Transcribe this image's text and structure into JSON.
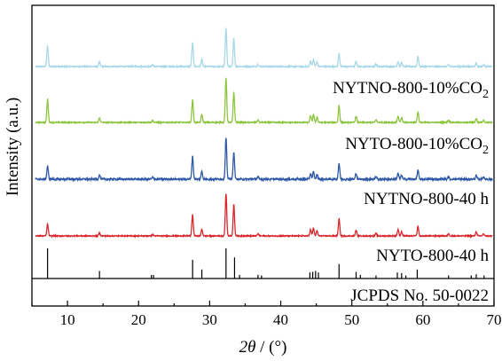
{
  "chart_data": {
    "type": "line",
    "xlabel": "2θ / (°)",
    "xlabel_var": "2θ",
    "xlabel_unit": " / (°)",
    "ylabel": "Intensity (a.u.)",
    "xlim": [
      5,
      70
    ],
    "x_ticks": [
      10,
      20,
      30,
      40,
      50,
      60,
      70
    ],
    "y_ticks_shown": false,
    "grid": false,
    "stacking": "vertical offset, top to bottom",
    "series": [
      {
        "name": "NYTNO-800-10%CO2",
        "label_main": "NYTNO-800-10%CO",
        "label_sub": "2",
        "color": "#a9d8e6",
        "noise": 0.05,
        "peaks": [
          [
            7.2,
            0.52
          ],
          [
            14.5,
            0.12
          ],
          [
            22,
            0.05
          ],
          [
            27.6,
            0.62
          ],
          [
            28.9,
            0.18
          ],
          [
            32.3,
            1.0
          ],
          [
            33.4,
            0.72
          ],
          [
            36.8,
            0.05
          ],
          [
            44.2,
            0.14
          ],
          [
            44.6,
            0.18
          ],
          [
            45.1,
            0.12
          ],
          [
            48.2,
            0.34
          ],
          [
            50.6,
            0.13
          ],
          [
            53.4,
            0.06
          ],
          [
            56.5,
            0.13
          ],
          [
            57,
            0.1
          ],
          [
            59.3,
            0.26
          ],
          [
            63.6,
            0.05
          ],
          [
            67.5,
            0.08
          ],
          [
            68.5,
            0.05
          ]
        ]
      },
      {
        "name": "NYTO-800-10%CO2",
        "label_main": "NYTO-800-10%CO",
        "label_sub": "2",
        "color": "#8cc63f",
        "noise": 0.04,
        "peaks": [
          [
            7.2,
            0.52
          ],
          [
            14.5,
            0.1
          ],
          [
            22,
            0.04
          ],
          [
            27.6,
            0.52
          ],
          [
            28.9,
            0.18
          ],
          [
            32.3,
            1.0
          ],
          [
            33.4,
            0.67
          ],
          [
            36.8,
            0.05
          ],
          [
            44.2,
            0.15
          ],
          [
            44.6,
            0.18
          ],
          [
            45.1,
            0.12
          ],
          [
            48.2,
            0.38
          ],
          [
            50.6,
            0.14
          ],
          [
            53.4,
            0.06
          ],
          [
            56.5,
            0.14
          ],
          [
            57,
            0.1
          ],
          [
            59.3,
            0.24
          ],
          [
            63.6,
            0.05
          ],
          [
            67.5,
            0.09
          ],
          [
            68.5,
            0.05
          ]
        ]
      },
      {
        "name": "NYTNO-800-40 h",
        "label_main": "NYTNO-800-40 h",
        "label_sub": "",
        "color": "#2f59a6",
        "noise": 0.07,
        "peaks": [
          [
            7.2,
            0.3
          ],
          [
            14.5,
            0.1
          ],
          [
            22,
            0.04
          ],
          [
            27.6,
            0.52
          ],
          [
            28.9,
            0.18
          ],
          [
            32.3,
            0.95
          ],
          [
            33.4,
            0.62
          ],
          [
            36.8,
            0.05
          ],
          [
            44.2,
            0.13
          ],
          [
            44.6,
            0.16
          ],
          [
            45.1,
            0.11
          ],
          [
            48.2,
            0.36
          ],
          [
            50.6,
            0.13
          ],
          [
            53.4,
            0.06
          ],
          [
            56.5,
            0.13
          ],
          [
            57,
            0.09
          ],
          [
            59.3,
            0.2
          ],
          [
            63.6,
            0.05
          ],
          [
            67.5,
            0.08
          ],
          [
            68.5,
            0.05
          ]
        ]
      },
      {
        "name": "NYTO-800-40 h",
        "label_main": "NYTO-800-40 h",
        "label_sub": "",
        "color": "#d9272e",
        "noise": 0.04,
        "peaks": [
          [
            7.2,
            0.28
          ],
          [
            14.5,
            0.07
          ],
          [
            22,
            0.03
          ],
          [
            27.6,
            0.5
          ],
          [
            28.9,
            0.15
          ],
          [
            32.3,
            1.0
          ],
          [
            33.4,
            0.75
          ],
          [
            36.8,
            0.05
          ],
          [
            44.2,
            0.15
          ],
          [
            44.6,
            0.18
          ],
          [
            45.1,
            0.12
          ],
          [
            48.2,
            0.4
          ],
          [
            50.6,
            0.14
          ],
          [
            53.4,
            0.06
          ],
          [
            56.5,
            0.15
          ],
          [
            57,
            0.1
          ],
          [
            59.3,
            0.22
          ],
          [
            63.6,
            0.05
          ],
          [
            67.5,
            0.1
          ],
          [
            68.5,
            0.05
          ]
        ]
      }
    ],
    "reference": {
      "name": "JCPDS No. 50-0022",
      "color": "#000000",
      "lines": [
        [
          7.2,
          1.0
        ],
        [
          14.5,
          0.25
        ],
        [
          21.8,
          0.12
        ],
        [
          22.1,
          0.12
        ],
        [
          27.6,
          0.62
        ],
        [
          28.9,
          0.3
        ],
        [
          32.3,
          1.0
        ],
        [
          33.5,
          0.7
        ],
        [
          34.2,
          0.12
        ],
        [
          36.8,
          0.12
        ],
        [
          37.3,
          0.1
        ],
        [
          44.1,
          0.2
        ],
        [
          44.5,
          0.22
        ],
        [
          44.9,
          0.25
        ],
        [
          45.3,
          0.2
        ],
        [
          48.2,
          0.48
        ],
        [
          50.6,
          0.22
        ],
        [
          51.2,
          0.12
        ],
        [
          53.4,
          0.1
        ],
        [
          56.4,
          0.2
        ],
        [
          57.0,
          0.18
        ],
        [
          57.6,
          0.1
        ],
        [
          59.2,
          0.3
        ],
        [
          63.6,
          0.1
        ],
        [
          66.8,
          0.1
        ],
        [
          67.5,
          0.14
        ],
        [
          68.6,
          0.1
        ]
      ]
    }
  }
}
